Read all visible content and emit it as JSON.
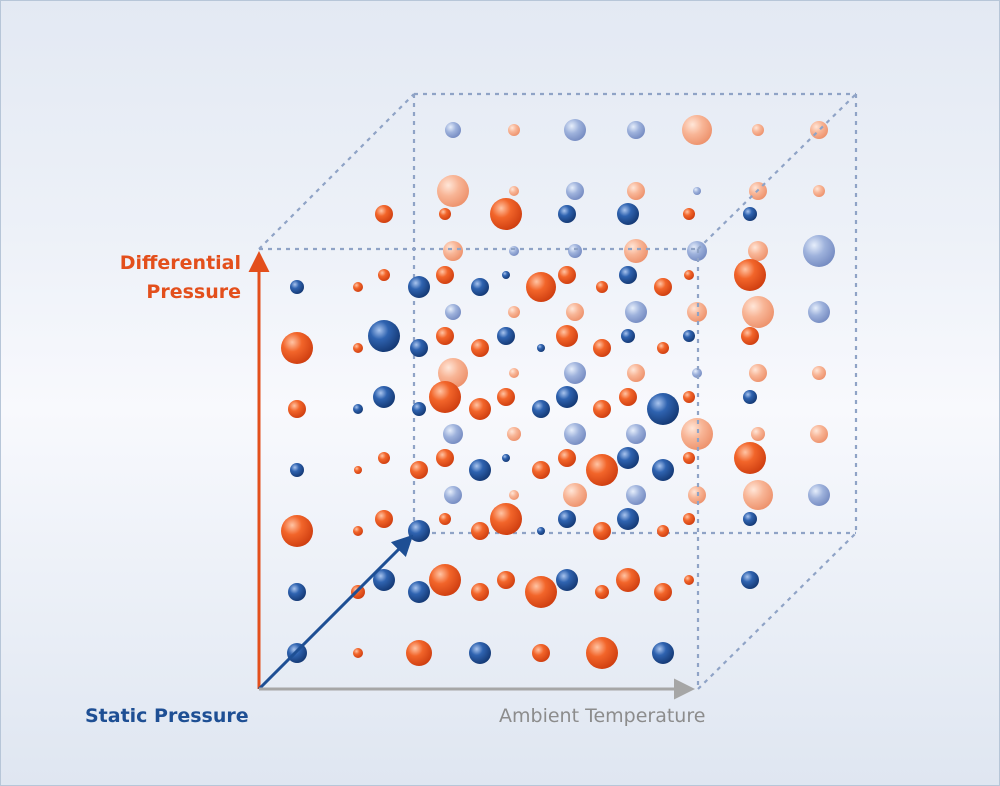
{
  "labels": {
    "differential_line1": "Differential",
    "differential_line2": "Pressure",
    "static": "Static Pressure",
    "ambient": "Ambient Temperature"
  },
  "colors": {
    "differential_axis": "#e34f1c",
    "static_axis": "#1e4f94",
    "ambient_axis": "#a6a6a6",
    "cube_edges": "#8fa3c6",
    "sphere_orange": "#ea4e17",
    "sphere_blue": "#1f4d96",
    "background": "#edf1f8"
  },
  "icons": [
    "differential-pressure-arrow",
    "static-pressure-arrow",
    "ambient-temperature-arrow"
  ]
}
